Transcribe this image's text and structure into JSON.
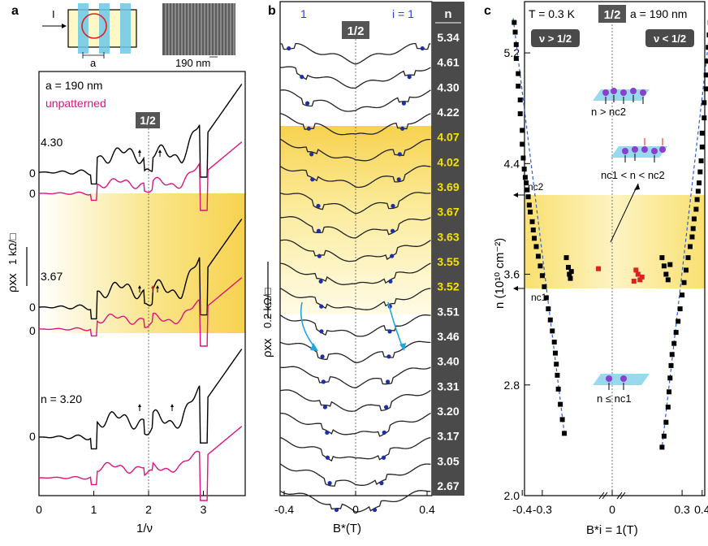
{
  "panel_a": {
    "label": "a",
    "inset_current": "I",
    "inset_period": "a",
    "sem_scale": "190 nm",
    "legend_patterned": "a = 190 nm",
    "legend_unpatterned": "unpatterned",
    "half_marker": "1/2",
    "trace_labels": [
      "4.30",
      "3.67",
      "n = 3.20"
    ],
    "zero_label": "0",
    "ylabel": "ρxx",
    "scalebar": "1 kΩ/□",
    "xlabel": "1/ν",
    "xticks": [
      "0",
      "1",
      "2",
      "3"
    ],
    "colors": {
      "patterned": "#000000",
      "unpatterned": "#e0137e",
      "band": "#f9e27a"
    }
  },
  "panel_b": {
    "label": "b",
    "top_left_index": "1",
    "top_right_index": "i = 1",
    "half_marker": "1/2",
    "n_header": "n",
    "n_values": [
      "5.34",
      "4.61",
      "4.30",
      "4.22",
      "4.07",
      "4.02",
      "3.69",
      "3.67",
      "3.63",
      "3.55",
      "3.52",
      "3.51",
      "3.46",
      "3.40",
      "3.31",
      "3.20",
      "3.17",
      "3.05",
      "2.67"
    ],
    "n_highlight_from": 4,
    "n_highlight_to": 10,
    "ylabel": "ρxx",
    "scalebar": "0.2 kΩ/□",
    "xlabel": "B*(T)",
    "xticks": [
      "-0.4",
      "0",
      "0.4"
    ]
  },
  "panel_c": {
    "label": "c",
    "temperature": "T = 0.3 K",
    "half_marker": "1/2",
    "period": "a = 190 nm",
    "badge_left": "ν > 1/2",
    "badge_right": "ν < 1/2",
    "regime_top": "n > nc2",
    "regime_mid": "nc1 < n < nc2",
    "regime_bottom": "n ≤ nc1",
    "nc2": "nc2",
    "nc1": "nc1",
    "ylabel": "n (10¹⁰ cm⁻²)",
    "yticks": [
      "5.2",
      "4.4",
      "3.6",
      "2.8",
      "2.0"
    ],
    "xticks": [
      "-0.4",
      "-0.3",
      "0",
      "0.3",
      "0.4"
    ],
    "xlabel": "B*i = 1(T)",
    "chart_data": {
      "type": "scatter",
      "xlabel": "B*i=1 (T)",
      "ylabel": "n (10^10 cm^-2)",
      "ylim": [
        2.0,
        5.5
      ],
      "series": [
        {
          "name": "",
          "values": [
            [
              -0.44,
              5.42
            ],
            [
              -0.435,
              5.35
            ],
            [
              -0.43,
              5.26
            ],
            [
              -0.43,
              5.16
            ],
            [
              -0.42,
              5.05
            ],
            [
              -0.42,
              4.96
            ],
            [
              -0.41,
              4.86
            ],
            [
              -0.41,
              4.76
            ],
            [
              -0.4,
              4.64
            ],
            [
              -0.4,
              4.54
            ],
            [
              -0.395,
              4.44
            ],
            [
              -0.39,
              4.36
            ],
            [
              -0.385,
              4.3
            ],
            [
              -0.38,
              4.26
            ],
            [
              -0.375,
              4.21
            ],
            [
              -0.37,
              4.16
            ],
            [
              -0.365,
              4.1
            ],
            [
              -0.36,
              4.05
            ],
            [
              -0.35,
              3.98
            ],
            [
              -0.345,
              3.92
            ],
            [
              -0.34,
              3.86
            ],
            [
              -0.33,
              3.8
            ],
            [
              -0.32,
              3.73
            ],
            [
              -0.31,
              3.66
            ],
            [
              -0.3,
              3.59
            ],
            [
              -0.29,
              3.51
            ],
            [
              -0.28,
              3.43
            ],
            [
              -0.27,
              3.35
            ],
            [
              -0.26,
              3.27
            ],
            [
              -0.25,
              3.19
            ],
            [
              -0.24,
              3.11
            ],
            [
              -0.235,
              3.03
            ],
            [
              -0.23,
              2.95
            ],
            [
              -0.225,
              2.87
            ],
            [
              -0.22,
              2.77
            ],
            [
              -0.21,
              2.66
            ],
            [
              -0.2,
              2.55
            ],
            [
              -0.19,
              2.45
            ],
            [
              0.44,
              5.42
            ],
            [
              0.435,
              5.33
            ],
            [
              0.43,
              5.24
            ],
            [
              0.425,
              5.14
            ],
            [
              0.42,
              5.04
            ],
            [
              0.42,
              4.94
            ],
            [
              0.41,
              4.84
            ],
            [
              0.41,
              4.73
            ],
            [
              0.4,
              4.62
            ],
            [
              0.4,
              4.52
            ],
            [
              0.395,
              4.42
            ],
            [
              0.39,
              4.34
            ],
            [
              0.385,
              4.26
            ],
            [
              0.38,
              4.2
            ],
            [
              0.375,
              4.14
            ],
            [
              0.37,
              4.07
            ],
            [
              0.36,
              4.0
            ],
            [
              0.355,
              3.93
            ],
            [
              0.35,
              3.87
            ],
            [
              0.34,
              3.8
            ],
            [
              0.33,
              3.72
            ],
            [
              0.32,
              3.63
            ],
            [
              0.31,
              3.54
            ],
            [
              0.3,
              3.45
            ],
            [
              0.29,
              3.35
            ],
            [
              0.28,
              3.26
            ],
            [
              0.27,
              3.18
            ],
            [
              0.26,
              3.1
            ],
            [
              0.25,
              3.02
            ],
            [
              0.245,
              2.94
            ],
            [
              0.24,
              2.85
            ],
            [
              0.235,
              2.75
            ],
            [
              0.23,
              2.64
            ],
            [
              0.22,
              2.53
            ],
            [
              0.21,
              2.43
            ],
            [
              0.2,
              2.35
            ],
            [
              -0.18,
              3.72
            ],
            [
              -0.17,
              3.65
            ],
            [
              -0.165,
              3.6
            ],
            [
              -0.16,
              3.57
            ],
            [
              -0.155,
              3.62
            ],
            [
              0.2,
              3.72
            ],
            [
              0.21,
              3.66
            ],
            [
              0.22,
              3.6
            ],
            [
              0.23,
              3.56
            ],
            [
              0.24,
              3.67
            ]
          ]
        },
        {
          "name": "",
          "values": [
            [
              -0.02,
              3.64
            ],
            [
              0.07,
              3.63
            ],
            [
              0.08,
              3.6
            ],
            [
              0.09,
              3.56
            ],
            [
              0.1,
              3.58
            ],
            [
              0.06,
              3.55
            ]
          ]
        }
      ]
    }
  }
}
